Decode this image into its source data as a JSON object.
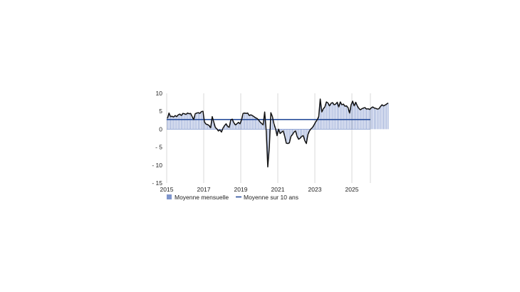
{
  "chart_data": {
    "type": "bar",
    "x_unit": "month",
    "x_start": "2015-01",
    "ylim": [
      -15,
      10
    ],
    "yticks": [
      10,
      5,
      0,
      -5,
      -10,
      -15
    ],
    "ytick_labels": [
      "10",
      "5",
      "0",
      "- 5",
      "- 10",
      "- 15"
    ],
    "xticks": [
      2015,
      2017,
      2019,
      2021,
      2023,
      2025
    ],
    "xtick_labels": [
      "2015",
      "2017",
      "2019",
      "2021",
      "2023",
      "2025"
    ],
    "xlim": [
      "2015-01",
      "2026-01"
    ],
    "grid": "vertical",
    "legend_position": "bottom",
    "series": [
      {
        "name": "Moyenne mensuelle",
        "kind": "bar+line",
        "color": "#7f95cc",
        "line_color": "#111111",
        "values": [
          3.0,
          4.5,
          3.5,
          3.6,
          3.4,
          3.8,
          3.5,
          4.0,
          4.2,
          3.8,
          4.4,
          4.3,
          4.1,
          4.5,
          4.3,
          4.4,
          3.5,
          2.7,
          4.3,
          4.5,
          4.6,
          4.4,
          4.9,
          5.0,
          2.0,
          1.4,
          1.3,
          1.0,
          0.4,
          3.5,
          2.0,
          0.5,
          0.1,
          -0.5,
          -0.2,
          -0.8,
          0.3,
          1.0,
          1.5,
          0.8,
          0.5,
          2.5,
          2.8,
          1.8,
          1.2,
          1.5,
          1.9,
          1.5,
          2.6,
          4.4,
          4.5,
          4.4,
          4.5,
          3.8,
          4.0,
          3.8,
          3.5,
          3.2,
          3.0,
          2.6,
          2.0,
          1.6,
          1.2,
          4.8,
          -0.5,
          -10.5,
          -5.0,
          4.6,
          3.5,
          1.5,
          0.2,
          -1.8,
          0.0,
          -1.2,
          -0.8,
          -0.5,
          -2.0,
          -3.9,
          -4.0,
          -3.8,
          -2.0,
          -1.5,
          -0.8,
          -0.5,
          -2.0,
          -2.8,
          -2.5,
          -2.0,
          -1.8,
          -3.2,
          -4.0,
          -1.5,
          -0.5,
          0.1,
          0.5,
          1.2,
          2.0,
          2.6,
          3.5,
          8.4,
          4.8,
          5.7,
          6.2,
          7.6,
          7.3,
          6.5,
          7.2,
          7.4,
          6.8,
          7.0,
          7.5,
          6.2,
          7.6,
          6.8,
          7.0,
          6.4,
          6.5,
          6.0,
          4.5,
          6.8,
          7.8,
          6.5,
          7.5,
          6.5,
          5.8,
          5.4,
          5.7,
          5.9,
          6.0,
          5.6,
          5.7,
          5.5,
          5.9,
          6.2,
          5.9,
          5.8,
          5.6,
          5.7,
          6.3,
          6.8,
          6.5,
          6.7,
          7.0,
          7.3
        ]
      },
      {
        "name": "Moyenne sur 10 ans",
        "kind": "hline",
        "color": "#2a4f9c",
        "value": 2.7
      }
    ]
  }
}
